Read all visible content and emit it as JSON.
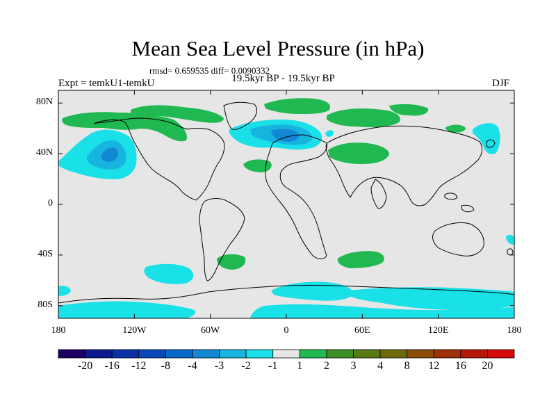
{
  "title": "Mean Sea Level Pressure (in hPa)",
  "stats_line": "rmsd= 0.659535 diff= 0.0090332",
  "experiment": "Expt = temkU1-temkU",
  "period": "19.5kyr BP - 19.5kyr BP",
  "season": "DJF",
  "lat_labels": [
    "80N",
    "40N",
    "0",
    "40S",
    "80S"
  ],
  "lon_labels": [
    "180",
    "120W",
    "60W",
    "0",
    "60E",
    "120E",
    "180"
  ],
  "colorbar": {
    "colors": [
      "#1b0066",
      "#0c1a8c",
      "#0a30a8",
      "#0848b8",
      "#0868c8",
      "#1288d4",
      "#18b4e0",
      "#1ae0e8",
      "#e6e6e6",
      "#20b850",
      "#3c9028",
      "#5a7a14",
      "#6e6a0a",
      "#8a4c08",
      "#9e3008",
      "#b41808",
      "#d60a0a"
    ],
    "labels": [
      "-20",
      "-16",
      "-12",
      "-8",
      "-4",
      "-3",
      "-2",
      "-1",
      "1",
      "2",
      "3",
      "4",
      "8",
      "12",
      "16",
      "20"
    ]
  },
  "anomaly_levels": {
    "background": "#e6e6e6",
    "neg1": "#1ae0e8",
    "neg2": "#18b4e0",
    "neg3": "#1288d4",
    "pos1": "#20b850"
  }
}
